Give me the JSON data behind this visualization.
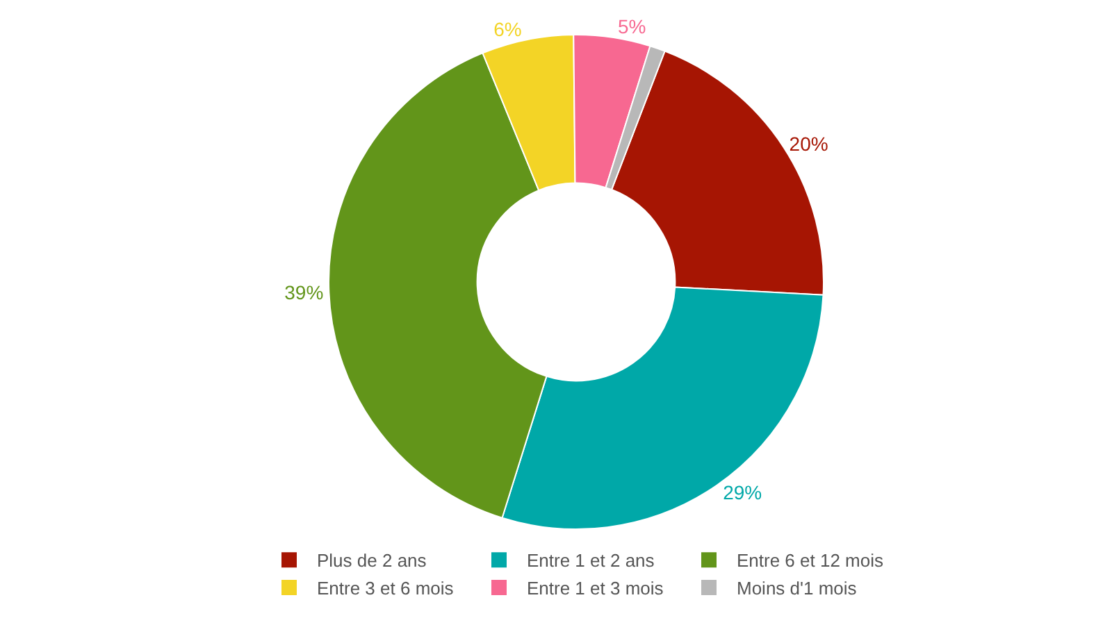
{
  "chart_data": {
    "type": "donut",
    "categories": [
      "Plus de 2 ans",
      "Entre 1 et 2 ans",
      "Entre 6 et 12 mois",
      "Entre 3 et 6 mois",
      "Entre 1 et 3 mois",
      "Moins d'1 mois"
    ],
    "values": [
      20,
      29,
      39,
      6,
      5,
      1
    ],
    "value_labels": [
      "20%",
      "29%",
      "39%",
      "6%",
      "5%",
      null
    ],
    "colors": [
      "#a61503",
      "#00a8a8",
      "#62951a",
      "#f3d426",
      "#f76891",
      "#b8b8b8"
    ],
    "legend": "bottom"
  }
}
